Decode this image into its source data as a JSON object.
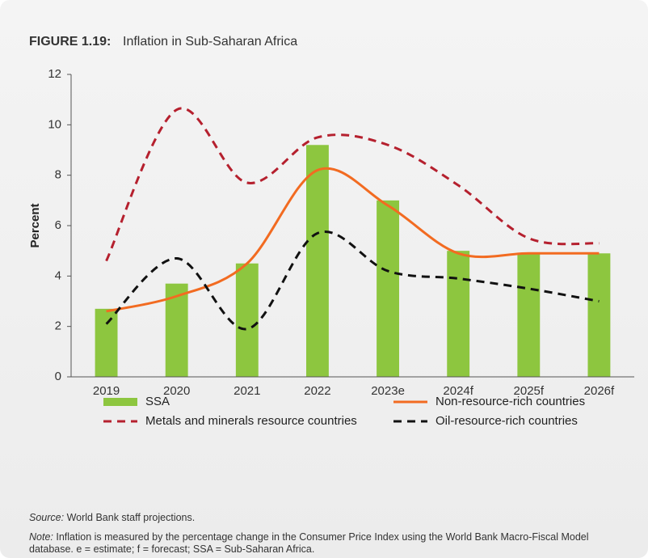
{
  "chart_data": {
    "type": "combo",
    "figure_label": "FIGURE 1.19:",
    "title": "Inflation in Sub-Saharan Africa",
    "ylabel": "Percent",
    "categories": [
      "2019",
      "2020",
      "2021",
      "2022",
      "2023e",
      "2024f",
      "2025f",
      "2026f"
    ],
    "ylim": [
      0,
      12
    ],
    "yticks": [
      0,
      2,
      4,
      6,
      8,
      10,
      12
    ],
    "series": [
      {
        "name": "SSA",
        "type": "bar",
        "color": "#8dc63f",
        "values": [
          2.7,
          3.7,
          4.5,
          9.2,
          7.0,
          5.0,
          4.9,
          4.9
        ]
      },
      {
        "name": "Non-resource-rich countries",
        "type": "line",
        "color": "#f26b21",
        "dashed": false,
        "values": [
          2.6,
          3.2,
          4.5,
          8.2,
          6.8,
          4.9,
          4.9,
          4.9
        ]
      },
      {
        "name": "Metals and minerals resource countries",
        "type": "line",
        "color": "#b5202e",
        "dashed": true,
        "values": [
          4.6,
          10.6,
          7.7,
          9.5,
          9.2,
          7.6,
          5.5,
          5.3
        ]
      },
      {
        "name": "Oil-resource-rich countries",
        "type": "line",
        "color": "#111111",
        "dashed": true,
        "values": [
          2.1,
          4.7,
          1.9,
          5.7,
          4.2,
          3.9,
          3.5,
          3.0
        ]
      }
    ],
    "source_label": "Source:",
    "source": "World Bank staff projections.",
    "note_label": "Note:",
    "note": "Inflation is measured by the percentage change in the Consumer Price Index using the World Bank Macro-Fiscal Model database. e = estimate; f = forecast; SSA = Sub-Saharan Africa."
  }
}
